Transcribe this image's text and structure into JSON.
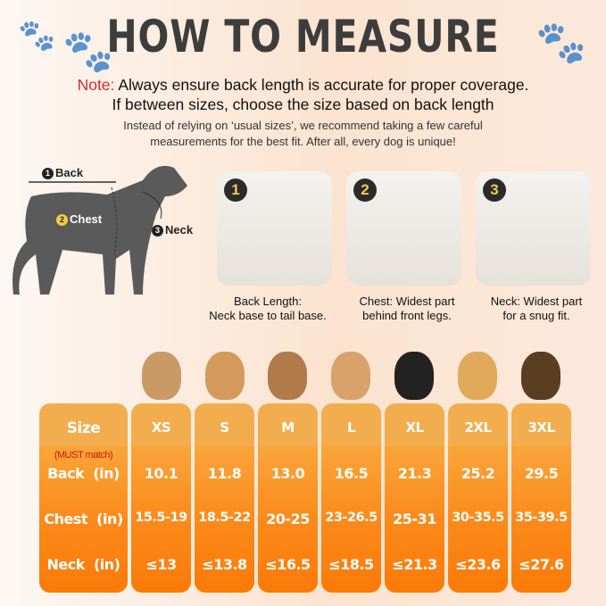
{
  "title": "HOW TO MEASURE",
  "note": {
    "label": "Note:",
    "line1": "Always ensure back length is accurate for proper coverage.",
    "line2": "If between sizes, choose the size based on back length"
  },
  "subtext": {
    "line1": "Instead of relying on ‘usual sizes’, we recommend taking a few careful",
    "line2": "measurements for the best fit. After all, every dog is unique!"
  },
  "diagram": {
    "back": "Back",
    "chest": "Chest",
    "neck": "Neck",
    "n1": "1",
    "n2": "2",
    "n3": "3"
  },
  "steps": [
    {
      "num": "1",
      "line1": "Back Length:",
      "line2": "Neck base to tail base."
    },
    {
      "num": "2",
      "line1": "Chest: Widest part",
      "line2": "behind front legs."
    },
    {
      "num": "3",
      "line1": "Neck: Widest part",
      "line2": "for a snug fit."
    }
  ],
  "table": {
    "header": "Size",
    "must": "(MUST match)",
    "rows": [
      "Back  (in)",
      "Chest  (in)",
      "Neck  (in)"
    ],
    "columns": [
      {
        "size": "XS",
        "back": "10.1",
        "chest": "15.5-19",
        "neck": "≤13"
      },
      {
        "size": "S",
        "back": "11.8",
        "chest": "18.5-22",
        "neck": "≤13.8"
      },
      {
        "size": "M",
        "back": "13.0",
        "chest": "20-25",
        "neck": "≤16.5"
      },
      {
        "size": "L",
        "back": "16.5",
        "chest": "23-26.5",
        "neck": "≤18.5"
      },
      {
        "size": "XL",
        "back": "21.3",
        "chest": "25-31",
        "neck": "≤21.3"
      },
      {
        "size": "2XL",
        "back": "25.2",
        "chest": "30-35.5",
        "neck": "≤23.6"
      },
      {
        "size": "3XL",
        "back": "29.5",
        "chest": "35-39.5",
        "neck": "≤27.6"
      }
    ]
  },
  "colors": {
    "accent": "#fb8b1c",
    "note": "#d42a2a"
  }
}
